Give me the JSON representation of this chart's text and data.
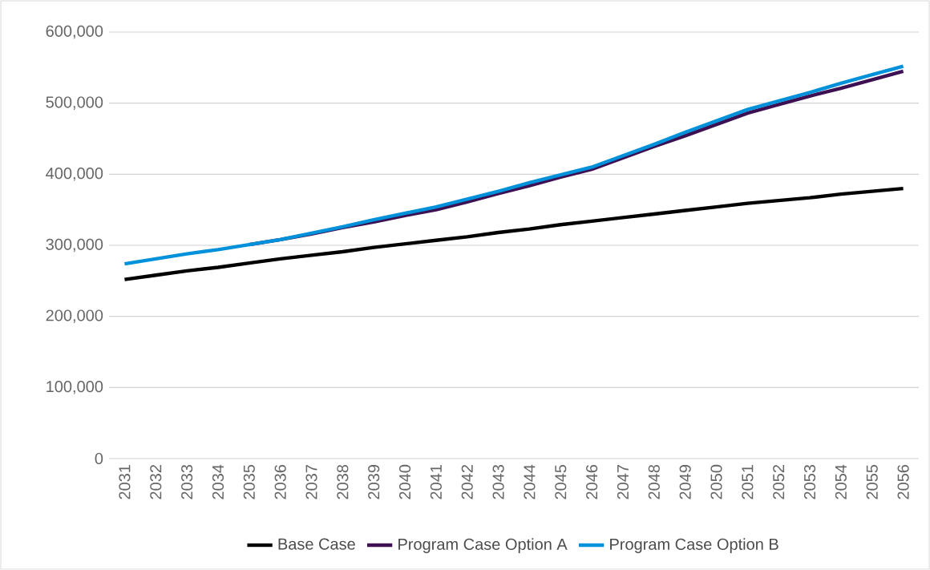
{
  "chart_data": {
    "type": "line",
    "categories": [
      "2031",
      "2032",
      "2033",
      "2034",
      "2035",
      "2036",
      "2037",
      "2038",
      "2039",
      "2040",
      "2041",
      "2042",
      "2043",
      "2044",
      "2045",
      "2046",
      "2047",
      "2048",
      "2049",
      "2050",
      "2051",
      "2052",
      "2053",
      "2054",
      "2055",
      "2056"
    ],
    "series": [
      {
        "name": "Base Case",
        "color": "#000000",
        "values": [
          252000,
          258000,
          264000,
          269000,
          275000,
          281000,
          286000,
          291000,
          297000,
          302000,
          307000,
          312000,
          318000,
          323000,
          329000,
          334000,
          339000,
          344000,
          349000,
          354000,
          359000,
          363000,
          367000,
          372000,
          376000,
          380000
        ]
      },
      {
        "name": "Program Case Option A",
        "color": "#3c1053",
        "values": [
          null,
          null,
          null,
          null,
          301000,
          308000,
          316000,
          325000,
          333000,
          342000,
          350000,
          361000,
          373000,
          384000,
          396000,
          407000,
          423000,
          439000,
          454000,
          470000,
          486000,
          498000,
          510000,
          521000,
          533000,
          545000
        ]
      },
      {
        "name": "Program Case Option B",
        "color": "#0091da",
        "values": [
          274000,
          281000,
          288000,
          294000,
          301000,
          308000,
          317000,
          326000,
          336000,
          345000,
          354000,
          365000,
          376000,
          388000,
          399000,
          410000,
          426000,
          442000,
          459000,
          475000,
          491000,
          503000,
          515000,
          528000,
          540000,
          552000
        ]
      }
    ],
    "ylim": [
      0,
      600000
    ],
    "yticks": [
      {
        "value": 0,
        "label": "0"
      },
      {
        "value": 100000,
        "label": "100,000"
      },
      {
        "value": 200000,
        "label": "200,000"
      },
      {
        "value": 300000,
        "label": "300,000"
      },
      {
        "value": 400000,
        "label": "400,000"
      },
      {
        "value": 500000,
        "label": "500,000"
      },
      {
        "value": 600000,
        "label": "600,000"
      }
    ],
    "grid": "y",
    "legend": "bottom",
    "marker": "none",
    "line_style": "solid"
  }
}
